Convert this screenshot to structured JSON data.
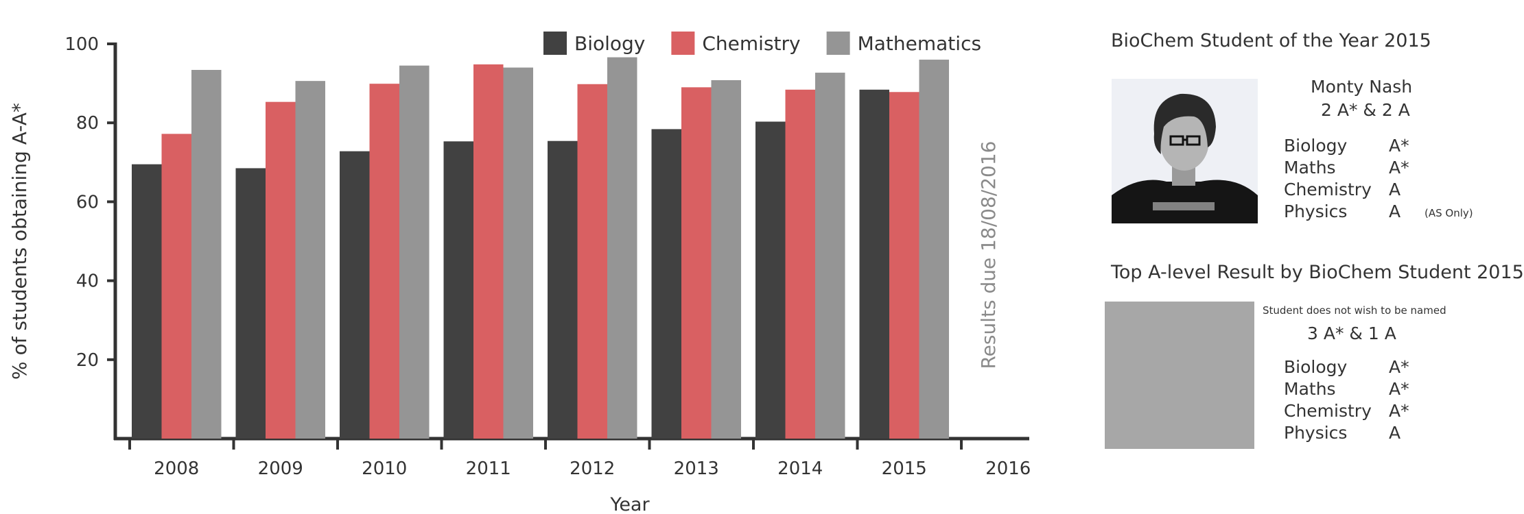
{
  "chart_data": {
    "type": "bar",
    "categories": [
      "2008",
      "2009",
      "2010",
      "2011",
      "2012",
      "2013",
      "2014",
      "2015",
      "2016"
    ],
    "series": [
      {
        "name": "Biology",
        "color": "#414141",
        "values": [
          69.5,
          68.5,
          72.8,
          75.3,
          75.4,
          78.4,
          80.3,
          88.4,
          null
        ]
      },
      {
        "name": "Chemistry",
        "color": "#d96062",
        "values": [
          77.2,
          85.3,
          89.9,
          94.8,
          89.8,
          89.0,
          88.4,
          87.8,
          null
        ]
      },
      {
        "name": "Mathematics",
        "color": "#959595",
        "values": [
          93.4,
          90.6,
          94.5,
          94.0,
          96.6,
          90.8,
          92.7,
          96.0,
          null
        ]
      }
    ],
    "xlabel": "Year",
    "ylabel": "% of students obtaining A-A*",
    "ylim": [
      0,
      100
    ],
    "yticks": [
      20,
      40,
      60,
      80,
      100
    ],
    "annotation": "Results due 18/08/2016",
    "legend_position": "top",
    "grid": false
  },
  "student_of_year": {
    "title": "BioChem Student of the Year 2015",
    "name": "Monty Nash",
    "summary": "2 A* & 2 A",
    "results": [
      {
        "subject": "Biology",
        "grade": "A*",
        "note": ""
      },
      {
        "subject": "Maths",
        "grade": "A*",
        "note": ""
      },
      {
        "subject": "Chemistry",
        "grade": "A",
        "note": ""
      },
      {
        "subject": "Physics",
        "grade": "A",
        "note": "(AS Only)"
      }
    ]
  },
  "top_result": {
    "title": "Top A-level Result by BioChem Student 2015",
    "name_note": "Student does not wish to be named",
    "summary": "3 A* & 1 A",
    "results": [
      {
        "subject": "Biology",
        "grade": "A*"
      },
      {
        "subject": "Maths",
        "grade": "A*"
      },
      {
        "subject": "Chemistry",
        "grade": "A*"
      },
      {
        "subject": "Physics",
        "grade": "A"
      }
    ]
  }
}
